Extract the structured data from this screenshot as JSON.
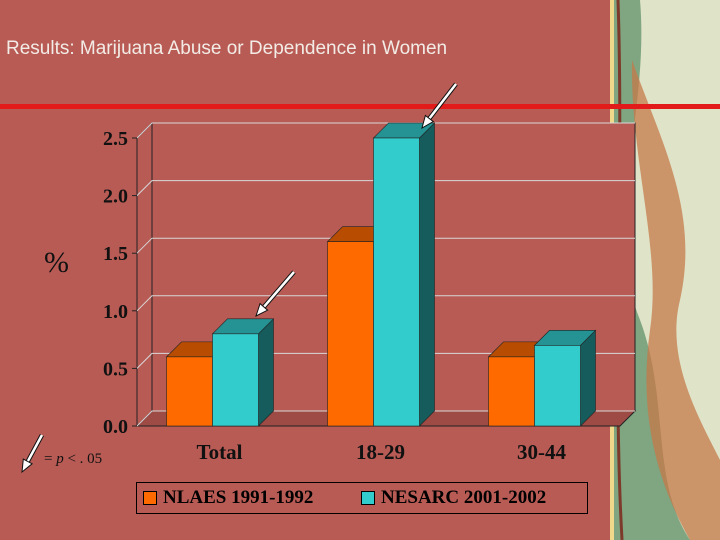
{
  "slide": {
    "title": "Results:  Marijuana Abuse or Dependence in Women",
    "y_unit": "%",
    "significance_note": {
      "prefix": "= ",
      "p": "p",
      "rest": " < . 05"
    }
  },
  "colors": {
    "background": "#b85b55",
    "rule": "#e31a1a",
    "series_1": "#ff6a00",
    "series_2": "#33cccc",
    "decor_panel": "#dfe3c8"
  },
  "chart_data": {
    "type": "bar",
    "categories": [
      "Total",
      "18-29",
      "30-44"
    ],
    "series": [
      {
        "name": "NLAES 1991-1992",
        "values": [
          0.6,
          1.6,
          0.6
        ]
      },
      {
        "name": "NESARC 2001-2002",
        "values": [
          0.8,
          2.5,
          0.7
        ]
      }
    ],
    "ylim": [
      0,
      2.5
    ],
    "yticks": [
      "0.0",
      "0.5",
      "1.0",
      "1.5",
      "2.0",
      "2.5"
    ],
    "grid": true,
    "legend": "bottom",
    "arrows": [
      "Total",
      "18-29",
      "legend"
    ]
  }
}
